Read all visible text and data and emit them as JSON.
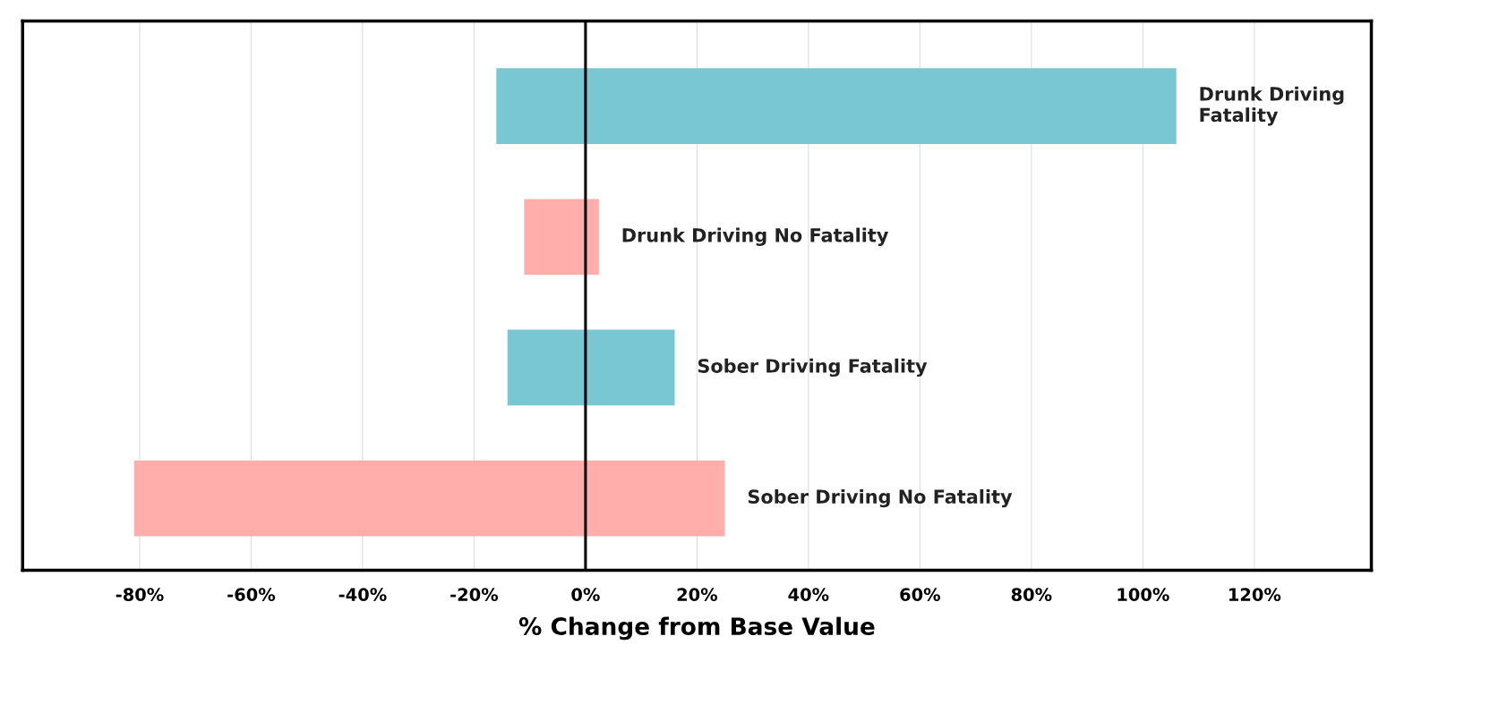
{
  "chart_data": {
    "type": "bar",
    "orientation": "horizontal",
    "xlabel": "% Change from Base Value",
    "categories": [
      "Drunk Driving\nFatality",
      "Drunk Driving No Fatality",
      "Sober Driving Fatality",
      "Sober Driving No Fatality"
    ],
    "base": [
      -16,
      -11,
      -14,
      -81
    ],
    "values": [
      122,
      13.4,
      30,
      106
    ],
    "colors": [
      "#79c7d3",
      "#ffaeab",
      "#79c7d3",
      "#ffaeab"
    ],
    "xlim": [
      -101,
      141
    ],
    "xticks": [
      {
        "value": -80,
        "label": "-80%"
      },
      {
        "value": -60,
        "label": "-60%"
      },
      {
        "value": -40,
        "label": "-40%"
      },
      {
        "value": -20,
        "label": "-20%"
      },
      {
        "value": 0,
        "label": "0%"
      },
      {
        "value": 20,
        "label": "20%"
      },
      {
        "value": 40,
        "label": "40%"
      },
      {
        "value": 60,
        "label": "60%"
      },
      {
        "value": 80,
        "label": "80%"
      },
      {
        "value": 100,
        "label": "100%"
      },
      {
        "value": 120,
        "label": "120%"
      }
    ],
    "ref_lines": [
      {
        "axis": "x",
        "value": 0,
        "color": "#000000"
      }
    ],
    "grid": "x",
    "tick_labels": "x"
  }
}
